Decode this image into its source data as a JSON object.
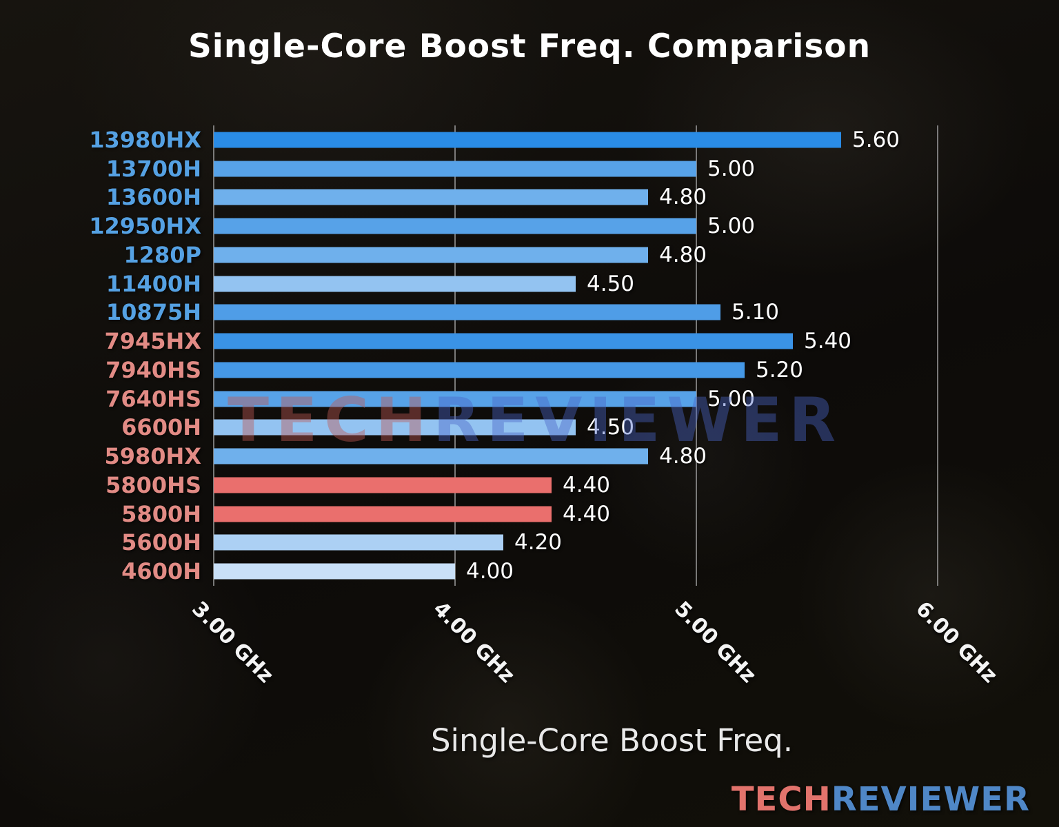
{
  "title": "Single-Core Boost Freq. Comparison",
  "watermark": {
    "tech": "TECH",
    "reviewer": "REVIEWER",
    "tech_color": "#c05a55",
    "reviewer_color": "#4a66c8"
  },
  "logo": {
    "tech": "TECH",
    "reviewer": "REVIEWER",
    "tech_color": "#e2736c",
    "reviewer_color": "#4f87c7"
  },
  "chart_data": {
    "type": "bar",
    "orientation": "horizontal",
    "title": "Single-Core Boost Freq. Comparison",
    "xlabel": "Single-Core Boost Freq.",
    "unit": "GHz",
    "xlim": [
      3.0,
      6.3
    ],
    "grid": true,
    "gridline_color": "#9e9e9e",
    "xticks": [
      {
        "value": 3.0,
        "label": "3.00 GHz"
      },
      {
        "value": 4.0,
        "label": "4.00 GHz"
      },
      {
        "value": 5.0,
        "label": "5.00 GHz"
      },
      {
        "value": 6.0,
        "label": "6.00 GHz"
      }
    ],
    "rows": [
      {
        "cpu": "13980HX",
        "value": 5.6,
        "value_label": "5.60",
        "bar_color": "#2a8ce6",
        "label_color": "#55a1e3"
      },
      {
        "cpu": "13700H",
        "value": 5.0,
        "value_label": "5.00",
        "bar_color": "#57a2e8",
        "label_color": "#55a1e3"
      },
      {
        "cpu": "13600H",
        "value": 4.8,
        "value_label": "4.80",
        "bar_color": "#6fb0ec",
        "label_color": "#55a1e3"
      },
      {
        "cpu": "12950HX",
        "value": 5.0,
        "value_label": "5.00",
        "bar_color": "#57a2e8",
        "label_color": "#55a1e3"
      },
      {
        "cpu": "1280P",
        "value": 4.8,
        "value_label": "4.80",
        "bar_color": "#6fb0ec",
        "label_color": "#55a1e3"
      },
      {
        "cpu": "11400H",
        "value": 4.5,
        "value_label": "4.50",
        "bar_color": "#93c3f1",
        "label_color": "#55a1e3"
      },
      {
        "cpu": "10875H",
        "value": 5.1,
        "value_label": "5.10",
        "bar_color": "#4f9de7",
        "label_color": "#55a1e3"
      },
      {
        "cpu": "7945HX",
        "value": 5.4,
        "value_label": "5.40",
        "bar_color": "#3a93e6",
        "label_color": "#e28b85"
      },
      {
        "cpu": "7940HS",
        "value": 5.2,
        "value_label": "5.20",
        "bar_color": "#4598e6",
        "label_color": "#e28b85"
      },
      {
        "cpu": "7640HS",
        "value": 5.0,
        "value_label": "5.00",
        "bar_color": "#57a2e8",
        "label_color": "#e28b85"
      },
      {
        "cpu": "6600H",
        "value": 4.5,
        "value_label": "4.50",
        "bar_color": "#93c3f1",
        "label_color": "#e28b85"
      },
      {
        "cpu": "5980HX",
        "value": 4.8,
        "value_label": "4.80",
        "bar_color": "#6fb0ec",
        "label_color": "#e28b85"
      },
      {
        "cpu": "5800HS",
        "value": 4.4,
        "value_label": "4.40",
        "bar_color": "#ea6f6d",
        "label_color": "#e28b85"
      },
      {
        "cpu": "5800H",
        "value": 4.4,
        "value_label": "4.40",
        "bar_color": "#ea6f6d",
        "label_color": "#e28b85"
      },
      {
        "cpu": "5600H",
        "value": 4.2,
        "value_label": "4.20",
        "bar_color": "#acd0f4",
        "label_color": "#e28b85"
      },
      {
        "cpu": "4600H",
        "value": 4.0,
        "value_label": "4.00",
        "bar_color": "#c9e0f8",
        "label_color": "#e28b85"
      }
    ]
  }
}
